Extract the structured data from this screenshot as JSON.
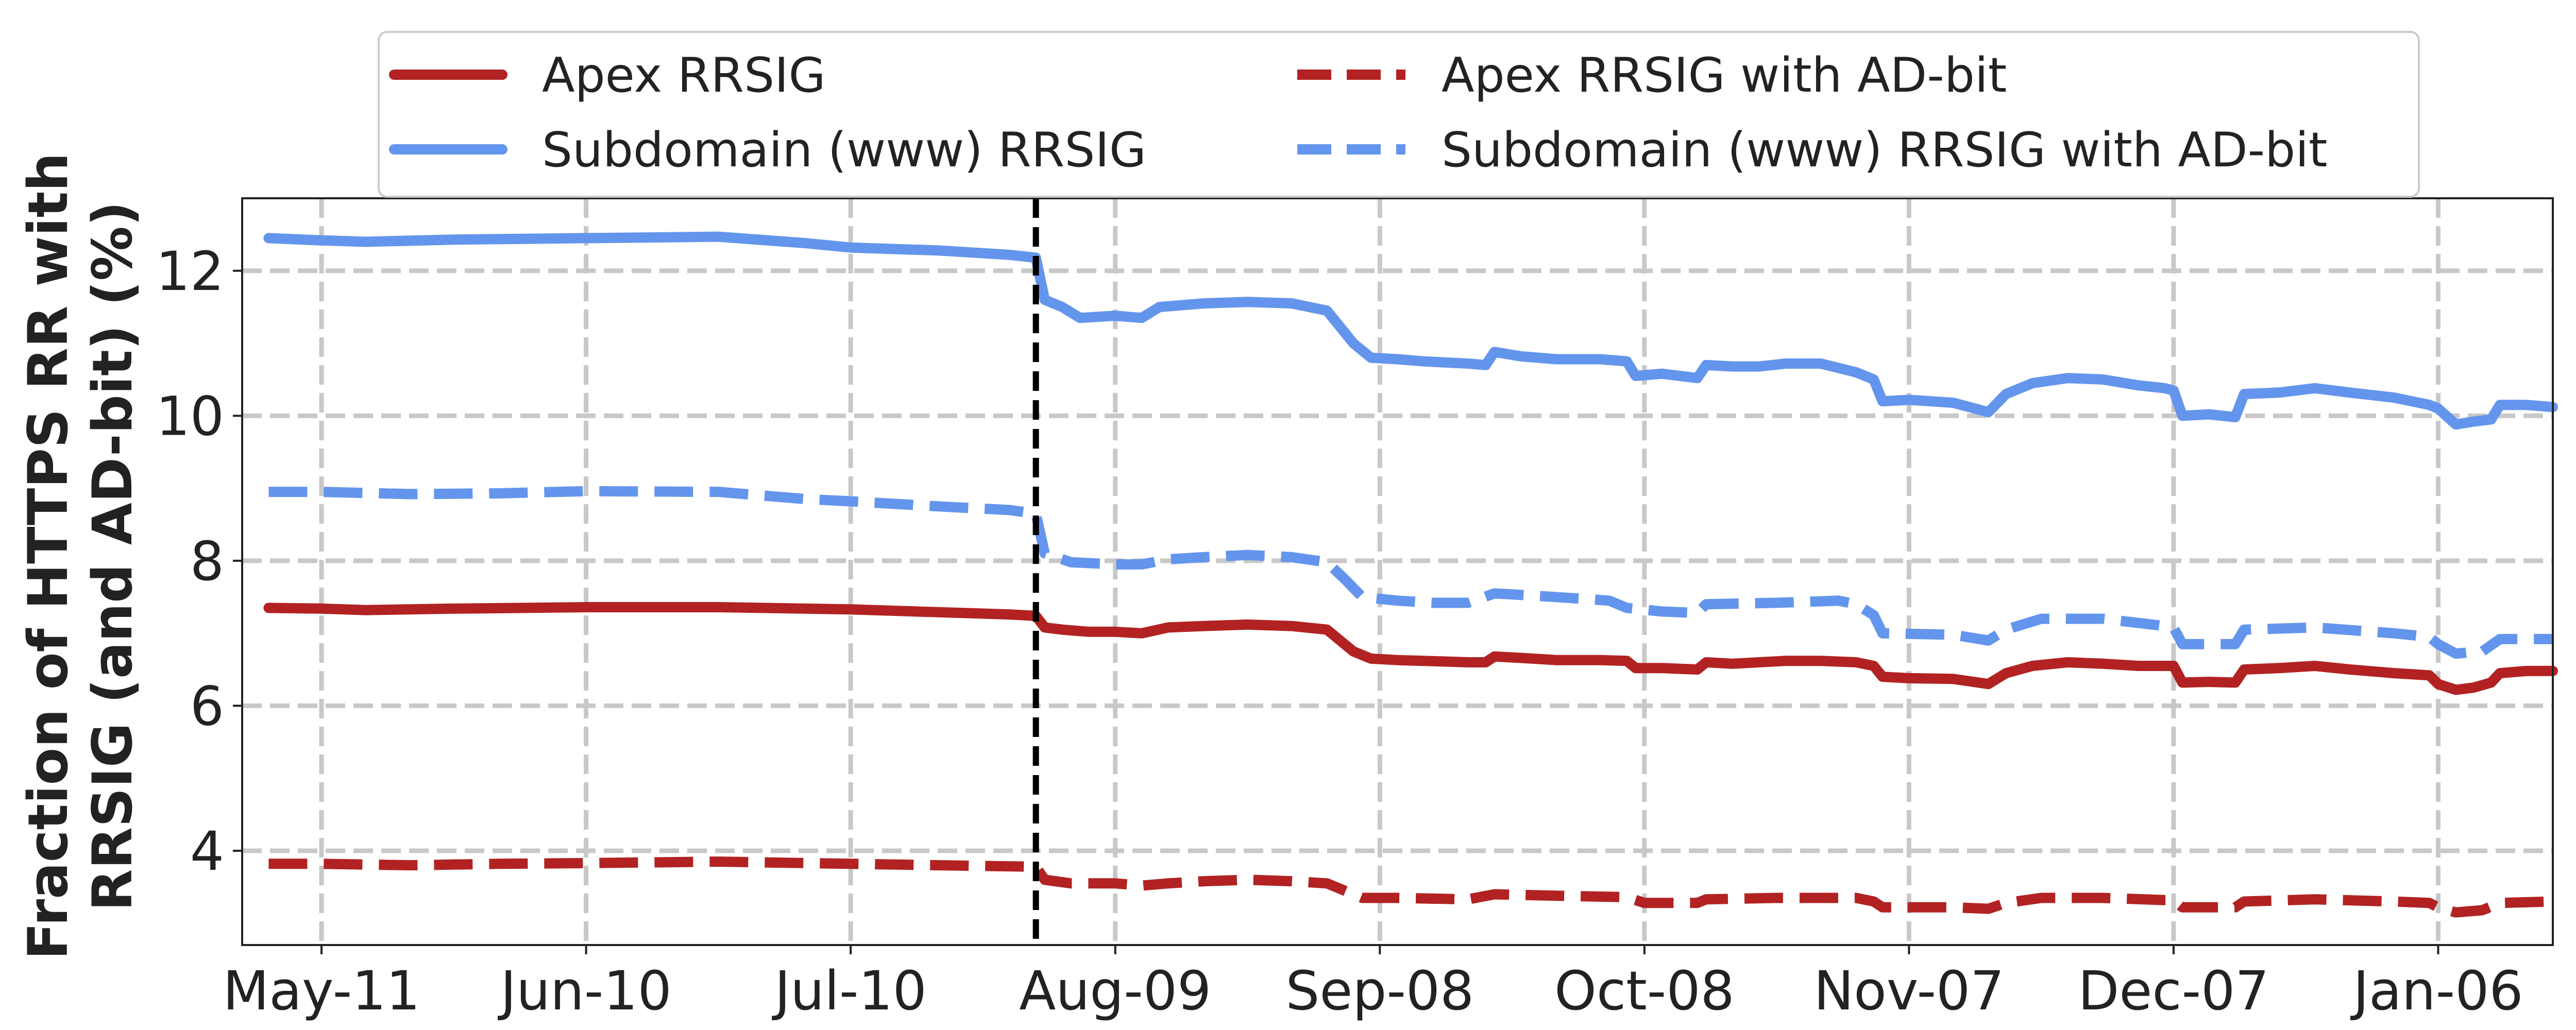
{
  "chart_data": {
    "type": "line",
    "title": "",
    "xlabel": "",
    "ylabel_lines": [
      "Fraction of HTTPS RR with",
      "RRSIG (and AD-bit) (%)"
    ],
    "x_ticks": [
      "May-11",
      "Jun-10",
      "Jul-10",
      "Aug-09",
      "Sep-08",
      "Oct-08",
      "Nov-07",
      "Dec-07",
      "Jan-06"
    ],
    "x_tick_days": [
      10,
      40,
      70,
      100,
      130,
      160,
      190,
      220,
      250
    ],
    "xlim_days": [
      1,
      263
    ],
    "y_ticks": [
      4,
      6,
      8,
      10,
      12
    ],
    "ylim": [
      2.7,
      13.0
    ],
    "grid": true,
    "legend_position": "top",
    "vline": {
      "day": 91,
      "style": "dashed",
      "color": "#000000"
    },
    "series": [
      {
        "name": "Apex RRSIG",
        "color": "#b22222",
        "style": "solid",
        "points": [
          [
            4,
            7.35
          ],
          [
            10,
            7.34
          ],
          [
            15,
            7.32
          ],
          [
            25,
            7.34
          ],
          [
            40,
            7.36
          ],
          [
            55,
            7.36
          ],
          [
            70,
            7.33
          ],
          [
            80,
            7.29
          ],
          [
            88,
            7.26
          ],
          [
            91,
            7.24
          ],
          [
            92,
            7.08
          ],
          [
            94,
            7.05
          ],
          [
            97,
            7.02
          ],
          [
            100,
            7.02
          ],
          [
            103,
            7.0
          ],
          [
            106,
            7.08
          ],
          [
            110,
            7.1
          ],
          [
            115,
            7.12
          ],
          [
            120,
            7.1
          ],
          [
            124,
            7.05
          ],
          [
            125,
            6.95
          ],
          [
            127,
            6.75
          ],
          [
            129,
            6.65
          ],
          [
            132,
            6.63
          ],
          [
            135,
            6.62
          ],
          [
            140,
            6.6
          ],
          [
            142,
            6.6
          ],
          [
            143,
            6.68
          ],
          [
            146,
            6.66
          ],
          [
            150,
            6.63
          ],
          [
            155,
            6.63
          ],
          [
            158,
            6.62
          ],
          [
            159,
            6.52
          ],
          [
            162,
            6.52
          ],
          [
            166,
            6.5
          ],
          [
            167,
            6.6
          ],
          [
            170,
            6.58
          ],
          [
            173,
            6.6
          ],
          [
            176,
            6.62
          ],
          [
            180,
            6.62
          ],
          [
            184,
            6.6
          ],
          [
            186,
            6.55
          ],
          [
            187,
            6.4
          ],
          [
            190,
            6.38
          ],
          [
            195,
            6.37
          ],
          [
            199,
            6.3
          ],
          [
            201,
            6.45
          ],
          [
            204,
            6.55
          ],
          [
            208,
            6.6
          ],
          [
            212,
            6.58
          ],
          [
            216,
            6.55
          ],
          [
            219,
            6.55
          ],
          [
            220,
            6.55
          ],
          [
            221,
            6.32
          ],
          [
            224,
            6.33
          ],
          [
            227,
            6.32
          ],
          [
            228,
            6.5
          ],
          [
            232,
            6.52
          ],
          [
            236,
            6.55
          ],
          [
            240,
            6.5
          ],
          [
            245,
            6.45
          ],
          [
            249,
            6.42
          ],
          [
            250,
            6.3
          ],
          [
            252,
            6.22
          ],
          [
            254,
            6.25
          ],
          [
            256,
            6.32
          ],
          [
            257,
            6.45
          ],
          [
            260,
            6.48
          ],
          [
            263,
            6.48
          ]
        ]
      },
      {
        "name": "Subdomain (www) RRSIG",
        "color": "#6495ed",
        "style": "solid",
        "points": [
          [
            4,
            12.45
          ],
          [
            10,
            12.42
          ],
          [
            15,
            12.4
          ],
          [
            25,
            12.43
          ],
          [
            40,
            12.45
          ],
          [
            55,
            12.47
          ],
          [
            65,
            12.38
          ],
          [
            70,
            12.32
          ],
          [
            80,
            12.28
          ],
          [
            88,
            12.22
          ],
          [
            91,
            12.18
          ],
          [
            92,
            11.6
          ],
          [
            94,
            11.5
          ],
          [
            96,
            11.35
          ],
          [
            100,
            11.38
          ],
          [
            103,
            11.35
          ],
          [
            105,
            11.5
          ],
          [
            110,
            11.55
          ],
          [
            115,
            11.57
          ],
          [
            120,
            11.55
          ],
          [
            124,
            11.45
          ],
          [
            125,
            11.3
          ],
          [
            127,
            11.0
          ],
          [
            129,
            10.8
          ],
          [
            132,
            10.78
          ],
          [
            135,
            10.75
          ],
          [
            140,
            10.72
          ],
          [
            142,
            10.7
          ],
          [
            143,
            10.88
          ],
          [
            146,
            10.82
          ],
          [
            150,
            10.78
          ],
          [
            155,
            10.78
          ],
          [
            158,
            10.75
          ],
          [
            159,
            10.55
          ],
          [
            162,
            10.58
          ],
          [
            166,
            10.52
          ],
          [
            167,
            10.7
          ],
          [
            170,
            10.68
          ],
          [
            173,
            10.68
          ],
          [
            176,
            10.72
          ],
          [
            180,
            10.72
          ],
          [
            184,
            10.6
          ],
          [
            186,
            10.5
          ],
          [
            187,
            10.2
          ],
          [
            190,
            10.22
          ],
          [
            195,
            10.18
          ],
          [
            199,
            10.05
          ],
          [
            201,
            10.3
          ],
          [
            204,
            10.45
          ],
          [
            208,
            10.52
          ],
          [
            212,
            10.5
          ],
          [
            216,
            10.42
          ],
          [
            219,
            10.38
          ],
          [
            220,
            10.35
          ],
          [
            221,
            10.0
          ],
          [
            224,
            10.02
          ],
          [
            227,
            9.98
          ],
          [
            228,
            10.3
          ],
          [
            232,
            10.32
          ],
          [
            236,
            10.38
          ],
          [
            240,
            10.32
          ],
          [
            245,
            10.25
          ],
          [
            249,
            10.15
          ],
          [
            250,
            10.1
          ],
          [
            252,
            9.88
          ],
          [
            254,
            9.92
          ],
          [
            256,
            9.95
          ],
          [
            257,
            10.15
          ],
          [
            260,
            10.15
          ],
          [
            263,
            10.12
          ]
        ]
      },
      {
        "name": "Apex RRSIG with AD-bit",
        "color": "#b22222",
        "style": "dashed",
        "points": [
          [
            4,
            3.82
          ],
          [
            10,
            3.82
          ],
          [
            20,
            3.8
          ],
          [
            30,
            3.82
          ],
          [
            40,
            3.83
          ],
          [
            55,
            3.85
          ],
          [
            70,
            3.82
          ],
          [
            80,
            3.8
          ],
          [
            91,
            3.78
          ],
          [
            92,
            3.6
          ],
          [
            95,
            3.55
          ],
          [
            100,
            3.55
          ],
          [
            103,
            3.52
          ],
          [
            106,
            3.55
          ],
          [
            110,
            3.58
          ],
          [
            115,
            3.6
          ],
          [
            120,
            3.58
          ],
          [
            124,
            3.55
          ],
          [
            126,
            3.45
          ],
          [
            128,
            3.35
          ],
          [
            132,
            3.35
          ],
          [
            140,
            3.33
          ],
          [
            143,
            3.4
          ],
          [
            150,
            3.38
          ],
          [
            158,
            3.36
          ],
          [
            160,
            3.28
          ],
          [
            166,
            3.28
          ],
          [
            167,
            3.33
          ],
          [
            175,
            3.35
          ],
          [
            184,
            3.35
          ],
          [
            186,
            3.3
          ],
          [
            187,
            3.22
          ],
          [
            195,
            3.22
          ],
          [
            199,
            3.2
          ],
          [
            201,
            3.28
          ],
          [
            205,
            3.35
          ],
          [
            212,
            3.35
          ],
          [
            219,
            3.32
          ],
          [
            220,
            3.32
          ],
          [
            221,
            3.22
          ],
          [
            227,
            3.22
          ],
          [
            228,
            3.3
          ],
          [
            236,
            3.33
          ],
          [
            245,
            3.3
          ],
          [
            249,
            3.28
          ],
          [
            250,
            3.22
          ],
          [
            252,
            3.15
          ],
          [
            255,
            3.18
          ],
          [
            257,
            3.28
          ],
          [
            263,
            3.3
          ]
        ]
      },
      {
        "name": "Subdomain (www) RRSIG with AD-bit",
        "color": "#6495ed",
        "style": "dashed",
        "points": [
          [
            4,
            8.95
          ],
          [
            10,
            8.95
          ],
          [
            20,
            8.92
          ],
          [
            30,
            8.93
          ],
          [
            40,
            8.96
          ],
          [
            55,
            8.95
          ],
          [
            65,
            8.85
          ],
          [
            70,
            8.82
          ],
          [
            80,
            8.75
          ],
          [
            88,
            8.7
          ],
          [
            91,
            8.65
          ],
          [
            92,
            8.1
          ],
          [
            95,
            7.98
          ],
          [
            100,
            7.95
          ],
          [
            103,
            7.95
          ],
          [
            106,
            8.02
          ],
          [
            110,
            8.05
          ],
          [
            115,
            8.08
          ],
          [
            120,
            8.05
          ],
          [
            124,
            7.98
          ],
          [
            126,
            7.75
          ],
          [
            128,
            7.5
          ],
          [
            132,
            7.45
          ],
          [
            136,
            7.42
          ],
          [
            140,
            7.42
          ],
          [
            143,
            7.55
          ],
          [
            150,
            7.5
          ],
          [
            156,
            7.45
          ],
          [
            158,
            7.35
          ],
          [
            162,
            7.3
          ],
          [
            166,
            7.28
          ],
          [
            167,
            7.4
          ],
          [
            175,
            7.42
          ],
          [
            182,
            7.45
          ],
          [
            184,
            7.4
          ],
          [
            186,
            7.25
          ],
          [
            187,
            7.0
          ],
          [
            195,
            6.98
          ],
          [
            199,
            6.9
          ],
          [
            201,
            7.05
          ],
          [
            205,
            7.2
          ],
          [
            212,
            7.2
          ],
          [
            219,
            7.1
          ],
          [
            220,
            7.08
          ],
          [
            221,
            6.85
          ],
          [
            227,
            6.85
          ],
          [
            228,
            7.05
          ],
          [
            236,
            7.08
          ],
          [
            245,
            7.0
          ],
          [
            249,
            6.95
          ],
          [
            250,
            6.85
          ],
          [
            252,
            6.72
          ],
          [
            255,
            6.75
          ],
          [
            257,
            6.92
          ],
          [
            263,
            6.92
          ]
        ]
      }
    ]
  }
}
